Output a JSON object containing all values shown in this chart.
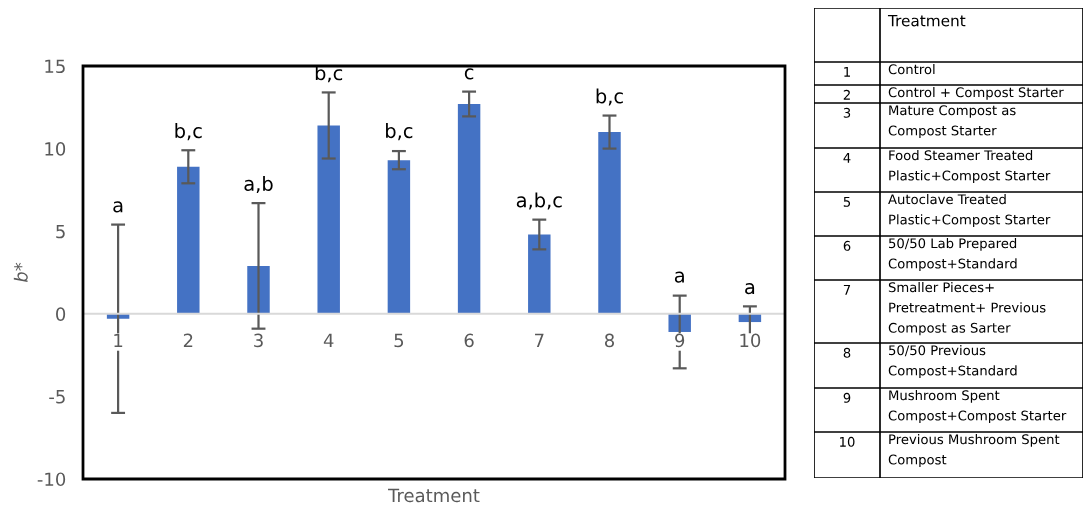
{
  "chart_data": [
    {
      "type": "bar",
      "xlabel": "Treatment",
      "ylabel": "b*",
      "categories": [
        "1",
        "2",
        "3",
        "4",
        "5",
        "6",
        "7",
        "8",
        "9",
        "10"
      ],
      "values": [
        -0.3,
        8.9,
        2.9,
        11.4,
        9.3,
        12.7,
        4.8,
        11.0,
        -1.1,
        -0.5
      ],
      "errors": [
        5.7,
        1.0,
        3.8,
        2.0,
        0.55,
        0.75,
        0.9,
        1.0,
        2.2,
        0.95
      ],
      "color": "#4472c4",
      "ylim": [
        -10,
        15
      ],
      "yticks": [
        -10,
        -5,
        0,
        5,
        10,
        15
      ],
      "grid": false,
      "annotations": [
        {
          "text": "a",
          "x": "1",
          "y": 5.4
        },
        {
          "text": "b,c",
          "x": "2",
          "y": 9.9
        },
        {
          "text": "a,b",
          "x": "3",
          "y": 6.7
        },
        {
          "text": "b,c",
          "x": "4",
          "y": 13.4
        },
        {
          "text": "b,c",
          "x": "5",
          "y": 9.9
        },
        {
          "text": "c",
          "x": "6",
          "y": 13.45
        },
        {
          "text": "a,b,c",
          "x": "7",
          "y": 5.7
        },
        {
          "text": "b,c",
          "x": "8",
          "y": 12.0
        },
        {
          "text": "a",
          "x": "9",
          "y": 1.15
        },
        {
          "text": "a",
          "x": "10",
          "y": 0.45
        }
      ]
    },
    {
      "type": "other",
      "title": "Treatment",
      "categories": [
        "1",
        "2",
        "3",
        "4",
        "5",
        "6",
        "7",
        "8",
        "9",
        "10"
      ],
      "annotations": [
        "Control",
        "Control + Compost Starter",
        "Mature Compost as\nCompost Starter",
        "Food Steamer Treated\nPlastic+Compost Starter",
        "Autoclave Treated\nPlastic+Compost Starter",
        "50/50 Lab Prepared\nCompost+Standard",
        "Smaller Pieces+\nPretreatment+ Previous\nCompost as Sarter",
        "50/50 Previous\nCompost+Standard",
        "Mushroom Spent\nCompost+Compost Starter",
        "Previous Mushroom Spent\nCompost"
      ]
    }
  ]
}
